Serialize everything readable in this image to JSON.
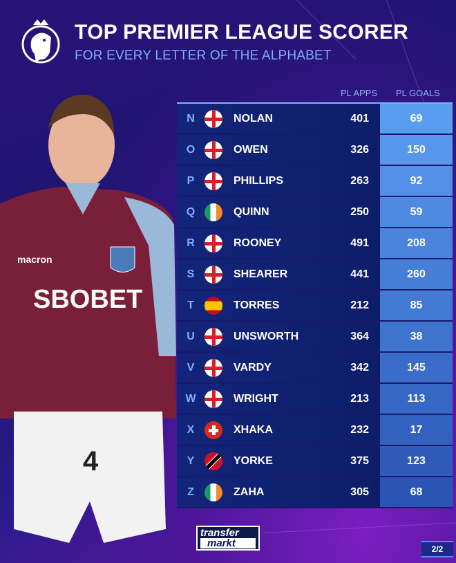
{
  "header": {
    "title": "TOP PREMIER LEAGUE SCORER",
    "subtitle": "FOR EVERY LETTER OF THE ALPHABET"
  },
  "columns": {
    "apps": "PL APPS",
    "goals": "PL GOALS"
  },
  "rows": [
    {
      "letter": "N",
      "flag": "england",
      "name": "NOLAN",
      "apps": "401",
      "goals": "69"
    },
    {
      "letter": "O",
      "flag": "england",
      "name": "OWEN",
      "apps": "326",
      "goals": "150"
    },
    {
      "letter": "P",
      "flag": "england",
      "name": "PHILLIPS",
      "apps": "263",
      "goals": "92"
    },
    {
      "letter": "Q",
      "flag": "ireland",
      "name": "QUINN",
      "apps": "250",
      "goals": "59"
    },
    {
      "letter": "R",
      "flag": "england",
      "name": "ROONEY",
      "apps": "491",
      "goals": "208"
    },
    {
      "letter": "S",
      "flag": "england",
      "name": "SHEARER",
      "apps": "441",
      "goals": "260"
    },
    {
      "letter": "T",
      "flag": "spain",
      "name": "TORRES",
      "apps": "212",
      "goals": "85"
    },
    {
      "letter": "U",
      "flag": "england",
      "name": "UNSWORTH",
      "apps": "364",
      "goals": "38"
    },
    {
      "letter": "V",
      "flag": "england",
      "name": "VARDY",
      "apps": "342",
      "goals": "145"
    },
    {
      "letter": "W",
      "flag": "england",
      "name": "WRIGHT",
      "apps": "213",
      "goals": "113"
    },
    {
      "letter": "X",
      "flag": "switzerland",
      "name": "XHAKA",
      "apps": "232",
      "goals": "17"
    },
    {
      "letter": "Y",
      "flag": "trinidad-and-tobago",
      "name": "YORKE",
      "apps": "375",
      "goals": "123"
    },
    {
      "letter": "Z",
      "flag": "ireland",
      "name": "ZAHA",
      "apps": "305",
      "goals": "68"
    }
  ],
  "player": {
    "sponsor": "SBOBET",
    "kit_brand": "macron",
    "number": "4"
  },
  "footer": {
    "logo_line1": "transfer",
    "logo_line2": "markt",
    "page": "2/2"
  },
  "colors": {
    "background": "#1d1570",
    "row": "#13257a",
    "goals_top": "#5a9cf0",
    "goals_bottom": "#2a55b5",
    "accent": "#7fb0ff"
  }
}
